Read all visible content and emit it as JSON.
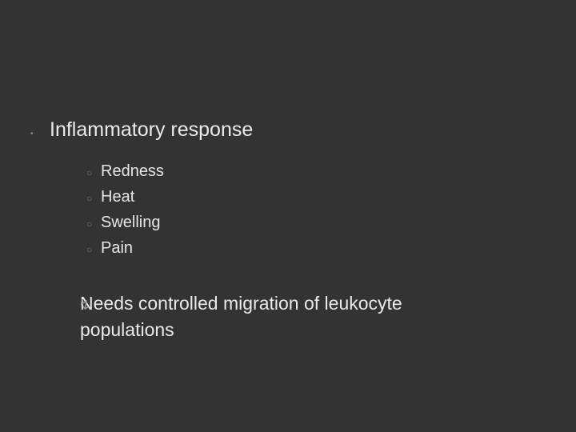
{
  "background_color": "#333333",
  "text_color": "#e6e6e6",
  "bullet_color": "#888888",
  "sub_bullet_color": "#777777",
  "needs_bullet_color": "#999999",
  "main": {
    "title": "Inflammatory response",
    "title_fontsize": 25,
    "bullet": "•"
  },
  "sub_items": {
    "bullet": "○",
    "fontsize": 20,
    "items": [
      "Redness",
      "Heat",
      "Swelling",
      "Pain"
    ]
  },
  "needs": {
    "bullet": "↯",
    "fontsize": 23,
    "text": "Needs controlled migration of leukocyte populations"
  }
}
